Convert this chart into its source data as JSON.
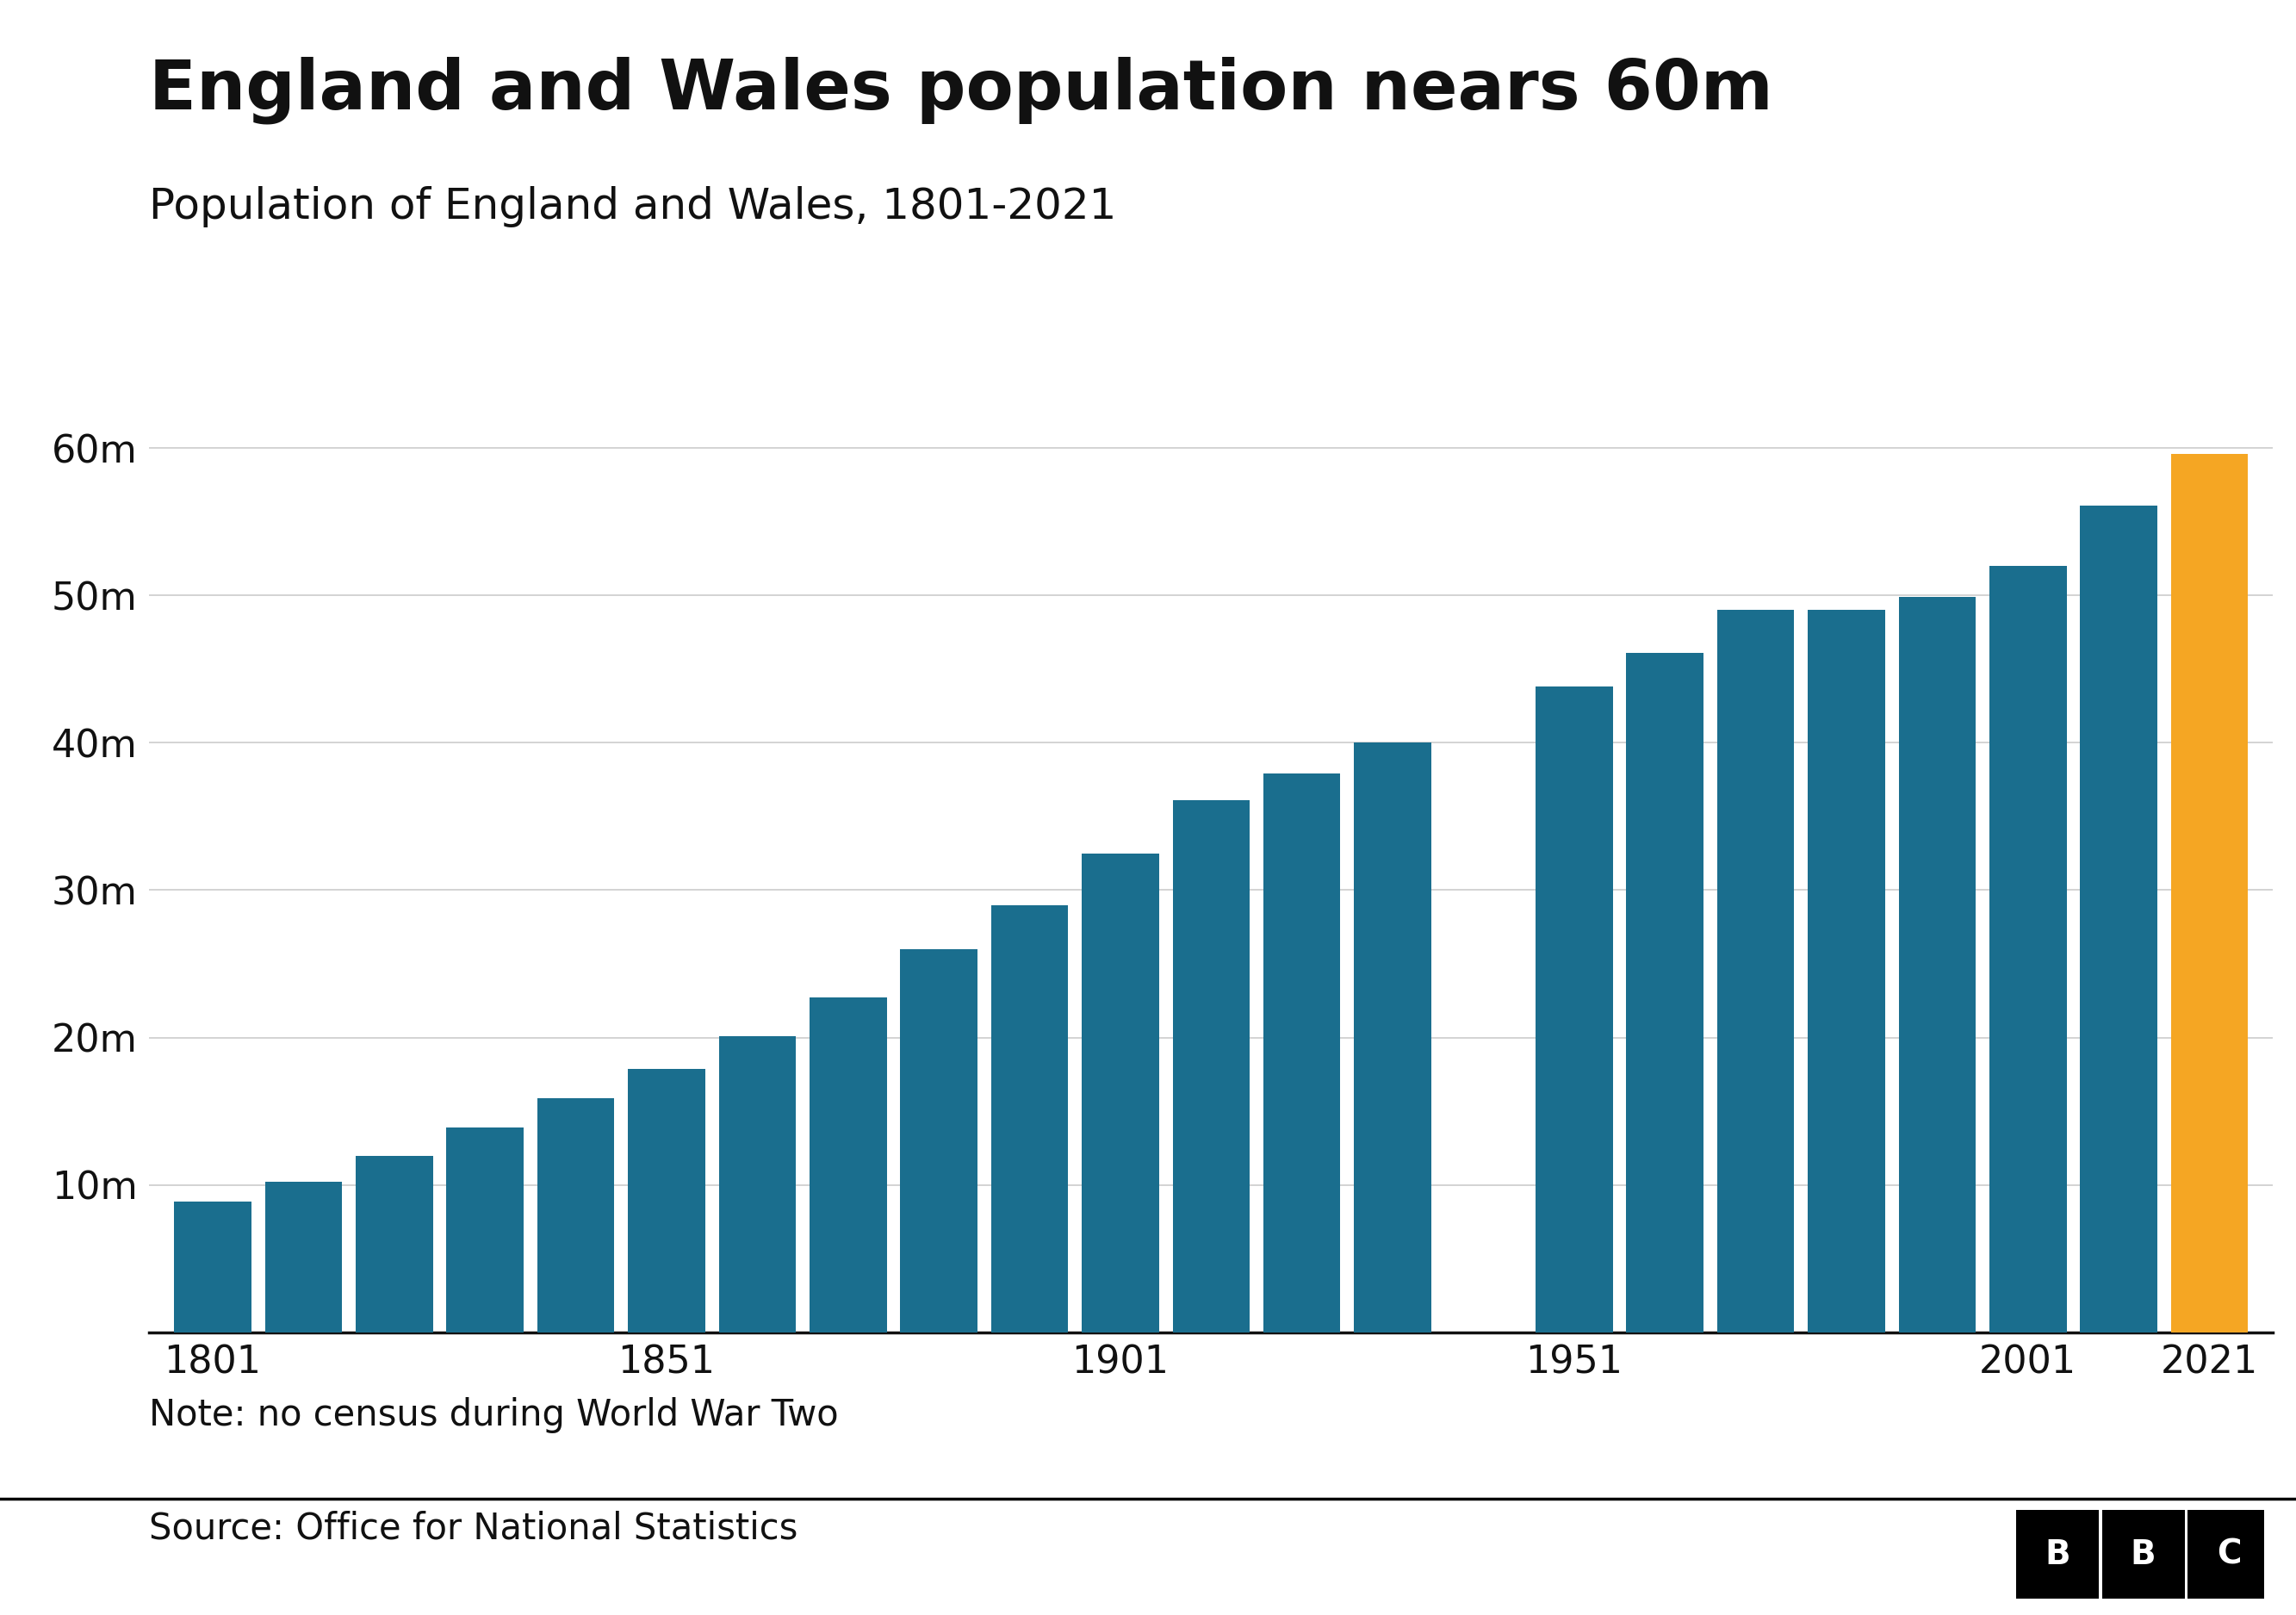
{
  "title": "England and Wales population nears 60m",
  "subtitle": "Population of England and Wales, 1801-2021",
  "note": "Note: no census during World War Two",
  "source": "Source: Office for National Statistics",
  "years": [
    1801,
    1811,
    1821,
    1831,
    1841,
    1851,
    1861,
    1871,
    1881,
    1891,
    1901,
    1911,
    1921,
    1931,
    1951,
    1961,
    1971,
    1981,
    1991,
    2001,
    2011,
    2021
  ],
  "population": [
    8.9,
    10.2,
    12.0,
    13.9,
    15.9,
    17.9,
    20.1,
    22.7,
    26.0,
    29.0,
    32.5,
    36.1,
    37.9,
    40.0,
    43.8,
    46.1,
    49.0,
    49.0,
    49.9,
    52.0,
    56.1,
    59.6
  ],
  "bar_colors": [
    "#1a6e8e",
    "#1a6e8e",
    "#1a6e8e",
    "#1a6e8e",
    "#1a6e8e",
    "#1a6e8e",
    "#1a6e8e",
    "#1a6e8e",
    "#1a6e8e",
    "#1a6e8e",
    "#1a6e8e",
    "#1a6e8e",
    "#1a6e8e",
    "#1a6e8e",
    "#1a6e8e",
    "#1a6e8e",
    "#1a6e8e",
    "#1a6e8e",
    "#1a6e8e",
    "#1a6e8e",
    "#1a6e8e",
    "#f5a623"
  ],
  "yticks": [
    0,
    10,
    20,
    30,
    40,
    50,
    60
  ],
  "ytick_labels": [
    "",
    "10m",
    "20m",
    "30m",
    "40m",
    "50m",
    "60m"
  ],
  "xtick_positions": [
    1801,
    1851,
    1901,
    1951,
    2001,
    2021
  ],
  "xtick_labels": [
    "1801",
    "1851",
    "1901",
    "1951",
    "2001",
    "2021"
  ],
  "ylim": [
    0,
    63
  ],
  "xlim": [
    1794,
    2028
  ],
  "background_color": "#ffffff",
  "title_fontsize": 58,
  "subtitle_fontsize": 36,
  "tick_fontsize": 32,
  "note_fontsize": 30,
  "source_fontsize": 30,
  "bar_width": 8.5,
  "teal_color": "#1a6e8e",
  "orange_color": "#f5a623",
  "grid_color": "#cccccc",
  "axis_color": "#111111",
  "text_color": "#111111"
}
